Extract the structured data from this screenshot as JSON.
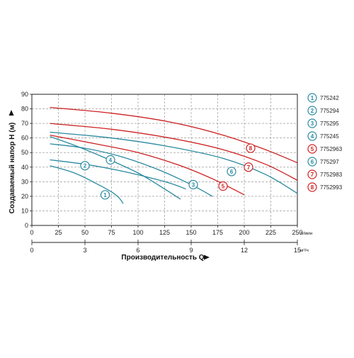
{
  "chart_data": {
    "type": "line",
    "xlabel": "Производительность Q",
    "ylabel": "Создаваемый напор H (м)",
    "x_unit": "л/мин",
    "x2_unit": "м³/ч",
    "xlim": [
      0,
      250
    ],
    "ylim": [
      0,
      90
    ],
    "x2lim": [
      0,
      15
    ],
    "xticks": [
      "0",
      "25",
      "50",
      "75",
      "100",
      "125",
      "150",
      "175",
      "200",
      "225",
      "250"
    ],
    "yticks": [
      "0",
      "10",
      "20",
      "30",
      "40",
      "50",
      "60",
      "70",
      "80",
      "90"
    ],
    "x2ticks": [
      "0",
      "3",
      "6",
      "9",
      "12",
      "15"
    ],
    "grid": true,
    "legend_position": "right",
    "series": [
      {
        "id": "1",
        "name": "775242",
        "color": "#2a8aa0",
        "x": [
          17,
          40,
          60,
          75,
          82,
          86
        ],
        "y": [
          41,
          36,
          29,
          23,
          19,
          15
        ],
        "marker": [
          69,
          21
        ]
      },
      {
        "id": "2",
        "name": "775294",
        "color": "#2a8aa0",
        "x": [
          17,
          50,
          80,
          110,
          130,
          145
        ],
        "y": [
          45,
          42,
          38,
          33,
          29,
          25
        ],
        "marker": [
          50,
          41
        ]
      },
      {
        "id": "3",
        "name": "775295",
        "color": "#2a8aa0",
        "x": [
          17,
          50,
          85,
          120,
          150,
          170
        ],
        "y": [
          56,
          53,
          47,
          38,
          28,
          20
        ],
        "marker": [
          152,
          28
        ]
      },
      {
        "id": "4",
        "name": "775245",
        "color": "#2a8aa0",
        "x": [
          17,
          40,
          70,
          100,
          125,
          140
        ],
        "y": [
          61,
          55,
          46,
          36,
          25,
          18
        ],
        "marker": [
          74,
          45
        ]
      },
      {
        "id": "5",
        "name": "7752963",
        "color": "#cc2222",
        "x": [
          17,
          60,
          100,
          140,
          170,
          200
        ],
        "y": [
          62,
          56,
          50,
          41,
          32,
          21
        ],
        "marker": [
          180,
          27
        ]
      },
      {
        "id": "6",
        "name": "775297",
        "color": "#2a8aa0",
        "x": [
          17,
          75,
          130,
          180,
          220,
          253
        ],
        "y": [
          64,
          60,
          54,
          46,
          35,
          22
        ],
        "marker": [
          188,
          37
        ]
      },
      {
        "id": "7",
        "name": "7752983",
        "color": "#cc2222",
        "x": [
          17,
          75,
          130,
          180,
          220,
          253
        ],
        "y": [
          70,
          66,
          60,
          52,
          42,
          31
        ],
        "marker": [
          204,
          40
        ]
      },
      {
        "id": "8",
        "name": "7752993",
        "color": "#cc2222",
        "x": [
          17,
          75,
          130,
          180,
          220,
          253
        ],
        "y": [
          81,
          77,
          71,
          62,
          52,
          43
        ],
        "marker": [
          206,
          53
        ]
      }
    ]
  }
}
